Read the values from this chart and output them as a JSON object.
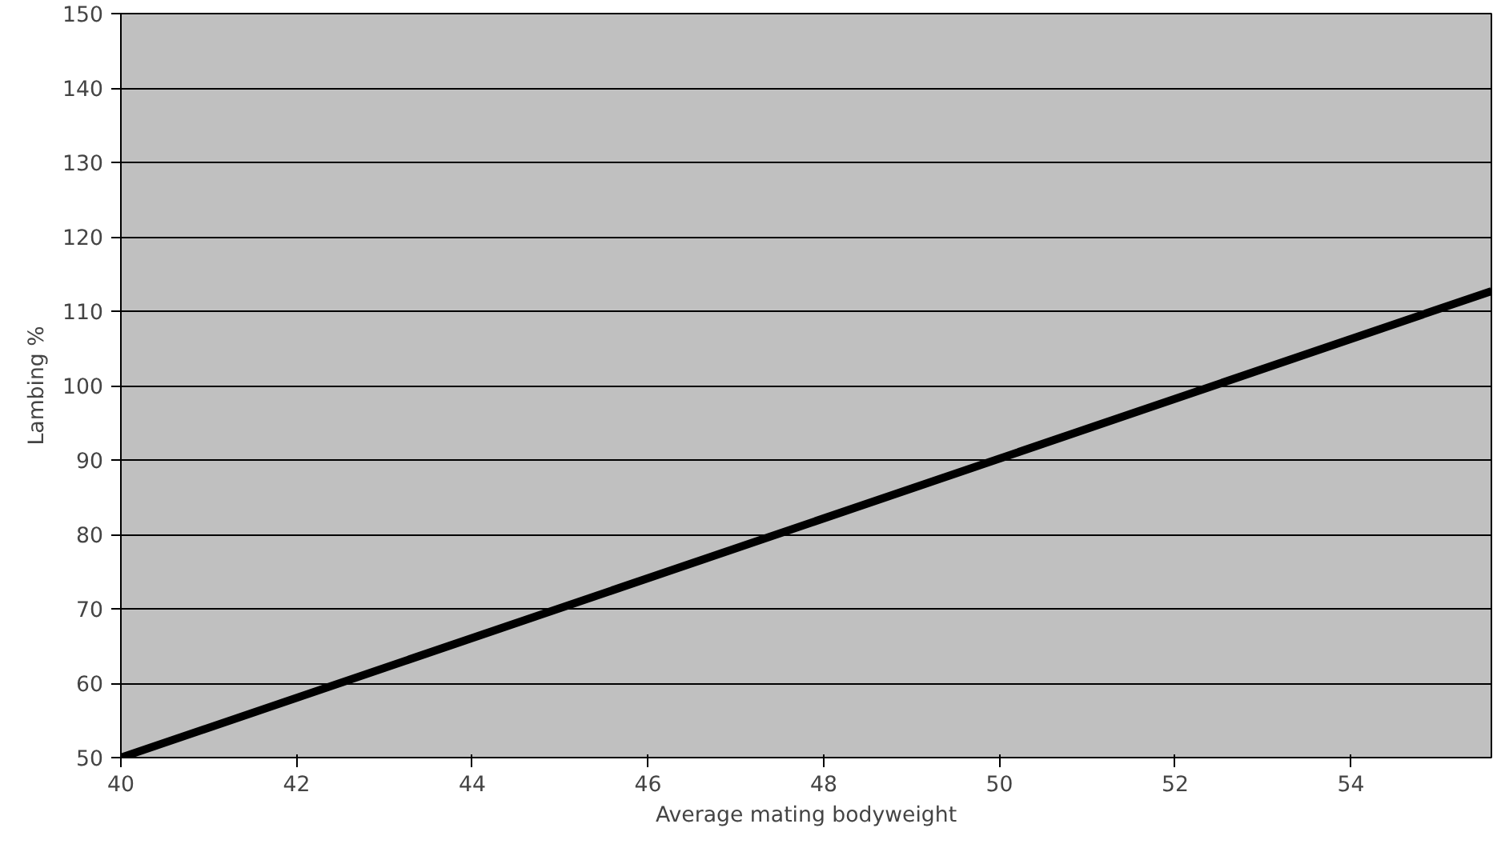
{
  "chart_data": {
    "type": "line",
    "xlabel": "Average mating bodyweight",
    "ylabel": "Lambing %",
    "x": [
      40,
      55.6
    ],
    "series": [
      {
        "color": "#000000",
        "values": [
          50,
          112.7
        ]
      }
    ],
    "xlim": [
      40,
      55.6
    ],
    "xticks": [
      40,
      42,
      44,
      46,
      48,
      50,
      52,
      54
    ],
    "ylim": [
      50,
      150
    ],
    "yticks": [
      50,
      60,
      70,
      80,
      90,
      100,
      110,
      120,
      130,
      140,
      150
    ],
    "grid": "y",
    "marker": "none",
    "line_style": "solid"
  }
}
